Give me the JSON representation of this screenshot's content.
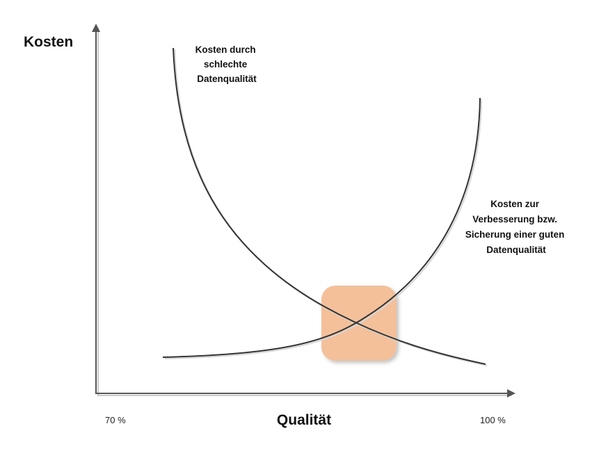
{
  "diagram": {
    "y_axis_label": "Kosten",
    "x_axis_label": "Qualität",
    "x_tick_min": "70 %",
    "x_tick_max": "100 %",
    "curve_bad_quality_label": [
      "Kosten durch",
      "schlechte",
      "Datenqualität"
    ],
    "curve_improvement_label": [
      "Kosten zur",
      "Verbesserung bzw.",
      "Sicherung einer guten",
      "Datenqualität"
    ],
    "optimum_highlight_color": "#f3c09a",
    "curve_color": "#333333",
    "axis_color": "#555555"
  }
}
